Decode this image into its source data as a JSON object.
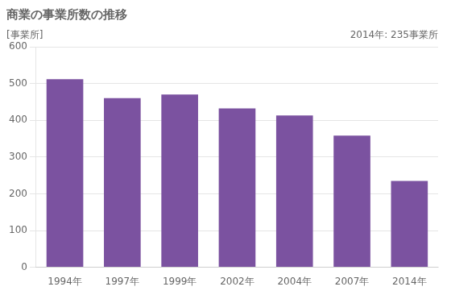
{
  "chart_data": {
    "type": "bar",
    "title": "商業の事業所数の推移",
    "ylabel": "[事業所]",
    "annotation": "2014年: 235事業所",
    "categories": [
      "1994年",
      "1997年",
      "1999年",
      "2002年",
      "2004年",
      "2007年",
      "2014年"
    ],
    "values": [
      512,
      460,
      470,
      432,
      413,
      358,
      235
    ],
    "color": "#7B52A0",
    "ylim": [
      0,
      600
    ],
    "yticks": [
      0,
      100,
      200,
      300,
      400,
      500,
      600
    ],
    "grid": true
  }
}
